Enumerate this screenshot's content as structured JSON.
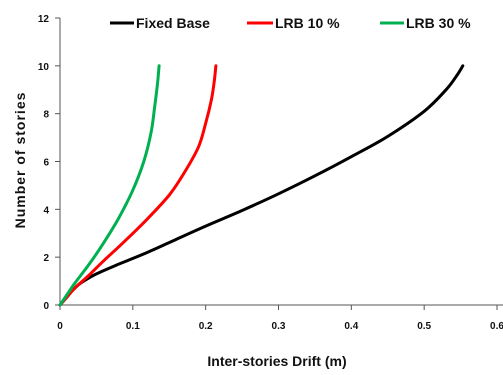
{
  "chart_data": {
    "type": "line",
    "title": "",
    "xlabel": "Inter-stories Drift (m)",
    "ylabel": "Number of stories",
    "xlim": [
      0,
      0.6
    ],
    "ylim": [
      0,
      12
    ],
    "x_ticks": [
      "0",
      "0.1",
      "0.2",
      "0.3",
      "0.4",
      "0.5",
      "0.6"
    ],
    "y_ticks": [
      "0",
      "2",
      "4",
      "6",
      "8",
      "10",
      "12"
    ],
    "grid": false,
    "legend_position": "top",
    "series": [
      {
        "name": "Fixed Base",
        "color": "#000000",
        "points": [
          [
            0,
            0
          ],
          [
            0.01,
            0.35
          ],
          [
            0.02,
            0.7
          ],
          [
            0.03,
            0.95
          ],
          [
            0.05,
            1.3
          ],
          [
            0.08,
            1.7
          ],
          [
            0.12,
            2.2
          ],
          [
            0.16,
            2.75
          ],
          [
            0.2,
            3.3
          ],
          [
            0.25,
            3.95
          ],
          [
            0.3,
            4.65
          ],
          [
            0.35,
            5.4
          ],
          [
            0.4,
            6.2
          ],
          [
            0.45,
            7.05
          ],
          [
            0.5,
            8.1
          ],
          [
            0.53,
            9.0
          ],
          [
            0.545,
            9.6
          ],
          [
            0.553,
            10.0
          ]
        ]
      },
      {
        "name": "LRB 10 %",
        "color": "#ff0000",
        "points": [
          [
            0,
            0
          ],
          [
            0.01,
            0.35
          ],
          [
            0.02,
            0.7
          ],
          [
            0.04,
            1.25
          ],
          [
            0.06,
            1.85
          ],
          [
            0.09,
            2.7
          ],
          [
            0.12,
            3.6
          ],
          [
            0.15,
            4.6
          ],
          [
            0.17,
            5.5
          ],
          [
            0.19,
            6.6
          ],
          [
            0.2,
            7.6
          ],
          [
            0.208,
            8.6
          ],
          [
            0.212,
            9.4
          ],
          [
            0.214,
            10.0
          ]
        ]
      },
      {
        "name": "LRB 30 %",
        "color": "#00b050",
        "points": [
          [
            0,
            0
          ],
          [
            0.01,
            0.45
          ],
          [
            0.02,
            0.9
          ],
          [
            0.04,
            1.7
          ],
          [
            0.06,
            2.6
          ],
          [
            0.08,
            3.6
          ],
          [
            0.1,
            4.8
          ],
          [
            0.115,
            6.0
          ],
          [
            0.125,
            7.2
          ],
          [
            0.13,
            8.3
          ],
          [
            0.134,
            9.3
          ],
          [
            0.136,
            10.0
          ]
        ]
      }
    ]
  }
}
